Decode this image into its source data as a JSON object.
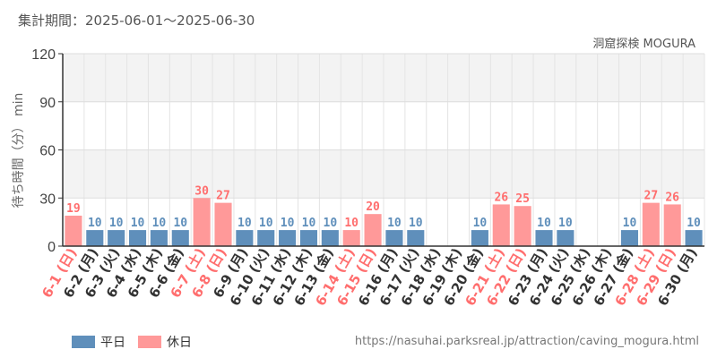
{
  "header": {
    "period": "集計期間：2025-06-01～2025-06-30",
    "attraction": "洞窟探検 MOGURA"
  },
  "footer": {
    "source_url": "https://nasuhai.parksreal.jp/attraction/caving_mogura.html"
  },
  "colors": {
    "weekday": "#5f8fbb",
    "holiday": "#ff9999",
    "holiday_label": "#ff6e6e",
    "weekday_tick": "#333333"
  },
  "chart_data": {
    "type": "bar",
    "ylabel": "待ち時間（分） min",
    "ylim": [
      0,
      120
    ],
    "yticks": [
      0,
      30,
      60,
      90,
      120
    ],
    "grid": true,
    "legend_position": "bottom-left",
    "legend": [
      {
        "key": "weekday",
        "label": "平日"
      },
      {
        "key": "holiday",
        "label": "休日"
      }
    ],
    "categories": [
      "6-1 (日)",
      "6-2 (月)",
      "6-3 (火)",
      "6-4 (水)",
      "6-5 (木)",
      "6-6 (金)",
      "6-7 (土)",
      "6-8 (日)",
      "6-9 (月)",
      "6-10 (火)",
      "6-11 (水)",
      "6-12 (木)",
      "6-13 (金)",
      "6-14 (土)",
      "6-15 (日)",
      "6-16 (月)",
      "6-17 (火)",
      "6-18 (水)",
      "6-19 (木)",
      "6-20 (金)",
      "6-21 (土)",
      "6-22 (日)",
      "6-23 (月)",
      "6-24 (火)",
      "6-25 (水)",
      "6-26 (木)",
      "6-27 (金)",
      "6-28 (土)",
      "6-29 (日)",
      "6-30 (月)"
    ],
    "values": [
      19,
      10,
      10,
      10,
      10,
      10,
      30,
      27,
      10,
      10,
      10,
      10,
      10,
      10,
      20,
      10,
      10,
      null,
      null,
      10,
      26,
      25,
      10,
      10,
      null,
      null,
      10,
      27,
      26,
      10
    ],
    "day_type": [
      "holiday",
      "weekday",
      "weekday",
      "weekday",
      "weekday",
      "weekday",
      "holiday",
      "holiday",
      "weekday",
      "weekday",
      "weekday",
      "weekday",
      "weekday",
      "holiday",
      "holiday",
      "weekday",
      "weekday",
      "weekday",
      "weekday",
      "weekday",
      "holiday",
      "holiday",
      "weekday",
      "weekday",
      "weekday",
      "weekday",
      "weekday",
      "holiday",
      "holiday",
      "weekday"
    ]
  }
}
